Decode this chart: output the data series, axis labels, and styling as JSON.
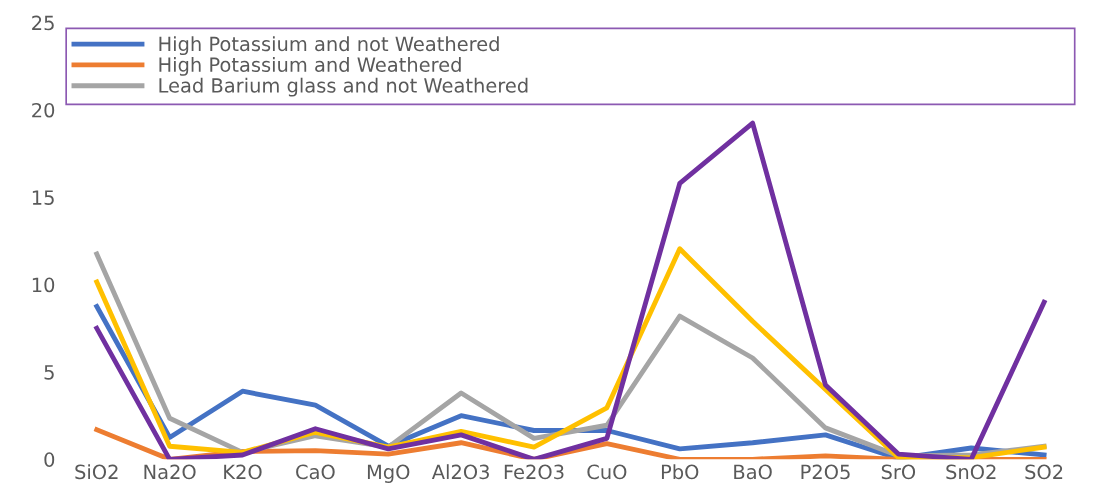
{
  "chart_data": {
    "type": "line",
    "categories": [
      "SiO2",
      "Na2O",
      "K2O",
      "CaO",
      "MgO",
      "Al2O3",
      "Fe2O3",
      "CuO",
      "PbO",
      "BaO",
      "P2O5",
      "SrO",
      "SnO2",
      "SO2"
    ],
    "series": [
      {
        "name": "High Potassium and not Weathered",
        "color": "#4472c4",
        "values": [
          8.75,
          1.25,
          3.9,
          3.1,
          0.75,
          2.5,
          1.65,
          1.65,
          0.6,
          0.95,
          1.4,
          0.05,
          0.65,
          0.25
        ]
      },
      {
        "name": "High Potassium and Weathered",
        "color": "#ed7d31",
        "values": [
          1.7,
          0,
          0.45,
          0.5,
          0.3,
          0.95,
          0,
          0.9,
          0,
          0,
          0.2,
          0,
          0,
          0
        ]
      },
      {
        "name": "Lead Barium glass and not Weathered",
        "color": "#a5a5a5",
        "values": [
          11.75,
          2.35,
          0.4,
          1.35,
          0.7,
          3.8,
          1.2,
          1.95,
          8.2,
          5.8,
          1.8,
          0.2,
          0.25,
          0.75
        ]
      },
      {
        "color": "#ffc000",
        "values": [
          10.15,
          0.75,
          0.4,
          1.55,
          0.7,
          1.6,
          0.7,
          2.95,
          12.05,
          7.9,
          4.0,
          0.1,
          0.1,
          0.7
        ]
      },
      {
        "color": "#7030a0",
        "values": [
          7.5,
          0,
          0.25,
          1.75,
          0.6,
          1.4,
          0,
          1.2,
          15.8,
          19.25,
          4.25,
          0.3,
          0,
          9.0
        ]
      }
    ],
    "ylim": [
      0,
      25
    ],
    "yticks": [
      0,
      5,
      10,
      15,
      20,
      25
    ],
    "grid": false,
    "legend": "top",
    "marker": "none",
    "line_style": "solid"
  }
}
